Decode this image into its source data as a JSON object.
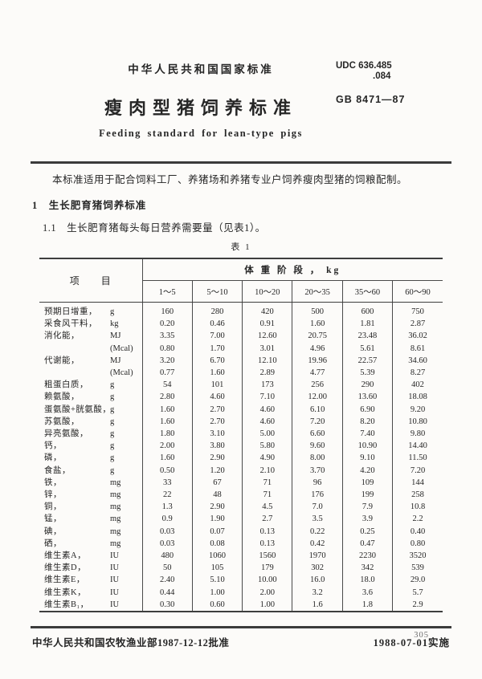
{
  "header": {
    "standard_label": "中华人民共和国国家标准",
    "udc_line1": "UDC 636.485",
    "udc_line2": ".084",
    "standard_number": "GB 8471—87",
    "title": "瘦肉型猪饲养标准",
    "subtitle": "Feeding standard for lean-type pigs"
  },
  "intro": {
    "scope": "本标准适用于配合饲料工厂、养猪场和养猪专业户饲养瘦肉型猪的饲粮配制。",
    "section1": "1　生长肥育猪饲养标准",
    "section1_1": "1.1　生长肥育猪每头每日营养需要量（见表1）。",
    "table_caption": "表 1"
  },
  "table": {
    "item_header": "项　　目",
    "group_header": "体 重 阶 段 ， kg",
    "columns": [
      "1～5",
      "5～10",
      "10～20",
      "20～35",
      "35～60",
      "60～90"
    ],
    "rows": [
      {
        "label": "预期日增重，",
        "unit": "g",
        "values": [
          "160",
          "280",
          "420",
          "500",
          "600",
          "750"
        ]
      },
      {
        "label": "采食风干料，",
        "unit": "kg",
        "values": [
          "0.20",
          "0.46",
          "0.91",
          "1.60",
          "1.81",
          "2.87"
        ]
      },
      {
        "label": "消化能，",
        "unit": "MJ",
        "values": [
          "3.35",
          "7.00",
          "12.60",
          "20.75",
          "23.48",
          "36.02"
        ]
      },
      {
        "label": "",
        "unit": "(Mcal)",
        "values": [
          "0.80",
          "1.70",
          "3.01",
          "4.96",
          "5.61",
          "8.61"
        ]
      },
      {
        "label": "代谢能，",
        "unit": "MJ",
        "values": [
          "3.20",
          "6.70",
          "12.10",
          "19.96",
          "22.57",
          "34.60"
        ]
      },
      {
        "label": "",
        "unit": "(Mcal)",
        "values": [
          "0.77",
          "1.60",
          "2.89",
          "4.77",
          "5.39",
          "8.27"
        ]
      },
      {
        "label": "粗蛋白质，",
        "unit": "g",
        "values": [
          "54",
          "101",
          "173",
          "256",
          "290",
          "402"
        ]
      },
      {
        "label": "赖氨酸，",
        "unit": "g",
        "values": [
          "2.80",
          "4.60",
          "7.10",
          "12.00",
          "13.60",
          "18.08"
        ]
      },
      {
        "label": "蛋氨酸+胱氨酸，",
        "unit": "g",
        "values": [
          "1.60",
          "2.70",
          "4.60",
          "6.10",
          "6.90",
          "9.20"
        ]
      },
      {
        "label": "苏氨酸，",
        "unit": "g",
        "values": [
          "1.60",
          "2.70",
          "4.60",
          "7.20",
          "8.20",
          "10.80"
        ]
      },
      {
        "label": "异亮氨酸，",
        "unit": "g",
        "values": [
          "1.80",
          "3.10",
          "5.00",
          "6.60",
          "7.40",
          "9.80"
        ]
      },
      {
        "label": "钙，",
        "unit": "g",
        "values": [
          "2.00",
          "3.80",
          "5.80",
          "9.60",
          "10.90",
          "14.40"
        ]
      },
      {
        "label": "磷，",
        "unit": "g",
        "values": [
          "1.60",
          "2.90",
          "4.90",
          "8.00",
          "9.10",
          "11.50"
        ]
      },
      {
        "label": "食盐，",
        "unit": "g",
        "values": [
          "0.50",
          "1.20",
          "2.10",
          "3.70",
          "4.20",
          "7.20"
        ]
      },
      {
        "label": "铁，",
        "unit": "mg",
        "values": [
          "33",
          "67",
          "71",
          "96",
          "109",
          "144"
        ]
      },
      {
        "label": "锌，",
        "unit": "mg",
        "values": [
          "22",
          "48",
          "71",
          "176",
          "199",
          "258"
        ]
      },
      {
        "label": "铜，",
        "unit": "mg",
        "values": [
          "1.3",
          "2.90",
          "4.5",
          "7.0",
          "7.9",
          "10.8"
        ]
      },
      {
        "label": "锰，",
        "unit": "mg",
        "values": [
          "0.9",
          "1.90",
          "2.7",
          "3.5",
          "3.9",
          "2.2"
        ]
      },
      {
        "label": "碘，",
        "unit": "mg",
        "values": [
          "0.03",
          "0.07",
          "0.13",
          "0.22",
          "0.25",
          "0.40"
        ]
      },
      {
        "label": "硒，",
        "unit": "mg",
        "values": [
          "0.03",
          "0.08",
          "0.13",
          "0.42",
          "0.47",
          "0.80"
        ]
      },
      {
        "label": "维生素A，",
        "unit": "IU",
        "values": [
          "480",
          "1060",
          "1560",
          "1970",
          "2230",
          "3520"
        ]
      },
      {
        "label": "维生素D，",
        "unit": "IU",
        "values": [
          "50",
          "105",
          "179",
          "302",
          "342",
          "539"
        ]
      },
      {
        "label": "维生素E，",
        "unit": "IU",
        "values": [
          "2.40",
          "5.10",
          "10.00",
          "16.0",
          "18.0",
          "29.0"
        ]
      },
      {
        "label": "维生素K，",
        "unit": "IU",
        "values": [
          "0.44",
          "1.00",
          "2.00",
          "3.2",
          "3.6",
          "5.7"
        ]
      },
      {
        "label": "维生素B₁，",
        "unit": "IU",
        "values": [
          "0.30",
          "0.60",
          "1.00",
          "1.6",
          "1.8",
          "2.9"
        ]
      }
    ]
  },
  "footer": {
    "approval": "中华人民共和国农牧渔业部1987-12-12批准",
    "implementation": "1988-07-01实施",
    "page_number": "305"
  }
}
